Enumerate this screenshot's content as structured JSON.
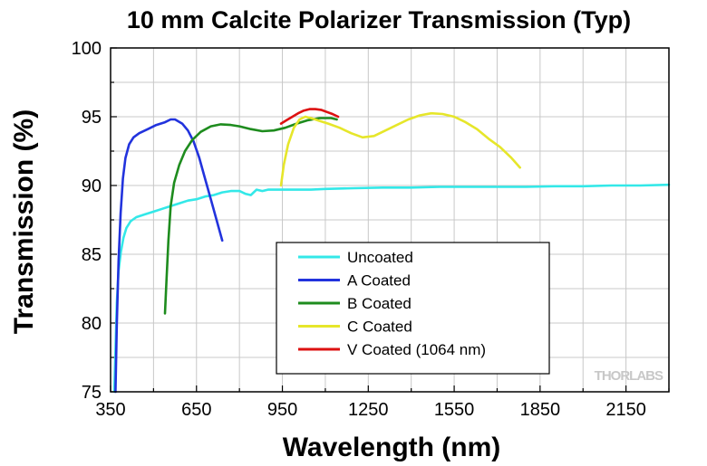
{
  "chart_data": {
    "type": "line",
    "title": "10 mm Calcite Polarizer Transmission (Typ)",
    "xlabel": "Wavelength (nm)",
    "ylabel": "Transmission (%)",
    "xlim": [
      350,
      2300
    ],
    "ylim": [
      75,
      100
    ],
    "xticks": [
      350,
      650,
      950,
      1250,
      1550,
      1850,
      2150
    ],
    "yticks": [
      75,
      80,
      85,
      90,
      95,
      100
    ],
    "grid": true,
    "legend_position": "center-right",
    "series": [
      {
        "name": "Uncoated",
        "color": "#33e8e8",
        "points": [
          [
            363,
            75
          ],
          [
            367,
            78
          ],
          [
            372,
            81.5
          ],
          [
            378,
            83.8
          ],
          [
            386,
            85.2
          ],
          [
            395,
            86.2
          ],
          [
            405,
            86.9
          ],
          [
            420,
            87.4
          ],
          [
            440,
            87.7
          ],
          [
            470,
            87.9
          ],
          [
            500,
            88.1
          ],
          [
            530,
            88.3
          ],
          [
            560,
            88.5
          ],
          [
            590,
            88.7
          ],
          [
            620,
            88.9
          ],
          [
            650,
            89.0
          ],
          [
            680,
            89.2
          ],
          [
            710,
            89.3
          ],
          [
            740,
            89.5
          ],
          [
            770,
            89.6
          ],
          [
            800,
            89.6
          ],
          [
            820,
            89.4
          ],
          [
            840,
            89.3
          ],
          [
            850,
            89.5
          ],
          [
            860,
            89.7
          ],
          [
            880,
            89.6
          ],
          [
            900,
            89.7
          ],
          [
            950,
            89.7
          ],
          [
            1000,
            89.7
          ],
          [
            1050,
            89.7
          ],
          [
            1100,
            89.75
          ],
          [
            1200,
            89.8
          ],
          [
            1300,
            89.85
          ],
          [
            1400,
            89.85
          ],
          [
            1500,
            89.9
          ],
          [
            1600,
            89.9
          ],
          [
            1700,
            89.9
          ],
          [
            1800,
            89.9
          ],
          [
            1900,
            89.95
          ],
          [
            2000,
            89.95
          ],
          [
            2100,
            90.0
          ],
          [
            2200,
            90.0
          ],
          [
            2300,
            90.05
          ]
        ]
      },
      {
        "name": "A Coated",
        "color": "#2233dd",
        "points": [
          [
            367,
            75
          ],
          [
            372,
            80
          ],
          [
            378,
            84.5
          ],
          [
            385,
            88
          ],
          [
            393,
            90.5
          ],
          [
            402,
            92
          ],
          [
            415,
            93
          ],
          [
            430,
            93.5
          ],
          [
            450,
            93.8
          ],
          [
            480,
            94.1
          ],
          [
            510,
            94.4
          ],
          [
            540,
            94.6
          ],
          [
            560,
            94.8
          ],
          [
            575,
            94.8
          ],
          [
            600,
            94.5
          ],
          [
            620,
            94.0
          ],
          [
            640,
            93.2
          ],
          [
            660,
            92.0
          ],
          [
            680,
            90.5
          ],
          [
            700,
            89.0
          ],
          [
            720,
            87.5
          ],
          [
            740,
            86.0
          ]
        ]
      },
      {
        "name": "B Coated",
        "color": "#1e8c1e",
        "points": [
          [
            540,
            80.7
          ],
          [
            545,
            83
          ],
          [
            552,
            86
          ],
          [
            560,
            88.5
          ],
          [
            572,
            90.2
          ],
          [
            590,
            91.5
          ],
          [
            610,
            92.5
          ],
          [
            635,
            93.3
          ],
          [
            665,
            93.9
          ],
          [
            700,
            94.3
          ],
          [
            735,
            94.45
          ],
          [
            770,
            94.4
          ],
          [
            800,
            94.3
          ],
          [
            840,
            94.1
          ],
          [
            880,
            93.95
          ],
          [
            920,
            94.0
          ],
          [
            960,
            94.2
          ],
          [
            1000,
            94.5
          ],
          [
            1040,
            94.75
          ],
          [
            1080,
            94.9
          ],
          [
            1120,
            94.9
          ],
          [
            1140,
            94.8
          ]
        ]
      },
      {
        "name": "C Coated",
        "color": "#e6e62a",
        "points": [
          [
            945,
            90
          ],
          [
            955,
            91.5
          ],
          [
            970,
            93
          ],
          [
            990,
            94.2
          ],
          [
            1010,
            94.8
          ],
          [
            1030,
            95.0
          ],
          [
            1050,
            94.9
          ],
          [
            1080,
            94.7
          ],
          [
            1110,
            94.5
          ],
          [
            1150,
            94.2
          ],
          [
            1190,
            93.8
          ],
          [
            1230,
            93.5
          ],
          [
            1270,
            93.6
          ],
          [
            1310,
            94.0
          ],
          [
            1350,
            94.4
          ],
          [
            1390,
            94.8
          ],
          [
            1430,
            95.1
          ],
          [
            1470,
            95.25
          ],
          [
            1510,
            95.2
          ],
          [
            1550,
            95.0
          ],
          [
            1590,
            94.6
          ],
          [
            1630,
            94.1
          ],
          [
            1670,
            93.4
          ],
          [
            1710,
            92.8
          ],
          [
            1750,
            92.0
          ],
          [
            1780,
            91.3
          ]
        ]
      },
      {
        "name": "V Coated (1064 nm)",
        "color": "#dd1111",
        "points": [
          [
            945,
            94.5
          ],
          [
            965,
            94.75
          ],
          [
            985,
            95.0
          ],
          [
            1005,
            95.25
          ],
          [
            1025,
            95.45
          ],
          [
            1045,
            95.55
          ],
          [
            1065,
            95.55
          ],
          [
            1085,
            95.5
          ],
          [
            1105,
            95.35
          ],
          [
            1125,
            95.2
          ],
          [
            1145,
            95.0
          ]
        ]
      }
    ]
  },
  "watermark": "THORLABS"
}
